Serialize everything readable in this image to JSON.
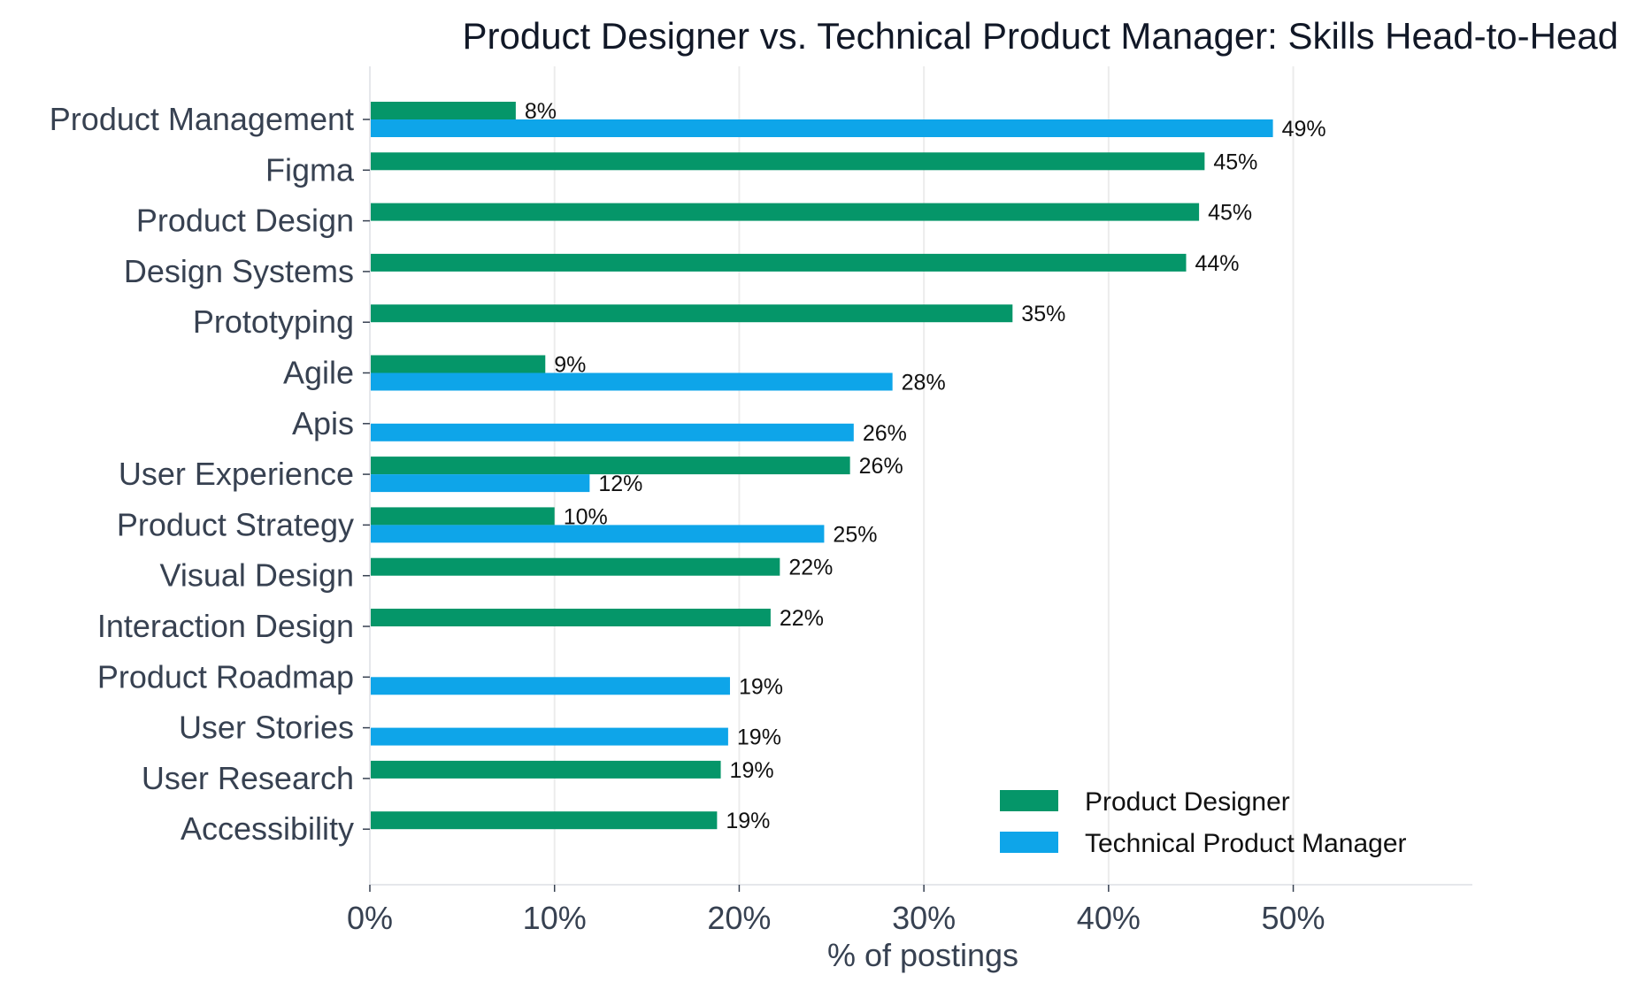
{
  "chart_data": {
    "type": "bar",
    "orientation": "horizontal",
    "title": "Product Designer vs. Technical Product Manager: Skills Head-to-Head",
    "xlabel": "% of postings",
    "ylabel": "",
    "xlim": [
      0,
      59.7
    ],
    "xticks": [
      0,
      10,
      20,
      30,
      40,
      50
    ],
    "xtick_labels": [
      "0%",
      "10%",
      "20%",
      "30%",
      "40%",
      "50%"
    ],
    "grid": "vertical",
    "legend_position": "lower-right",
    "categories": [
      "Product Management",
      "Figma",
      "Product Design",
      "Design Systems",
      "Prototyping",
      "Agile",
      "Apis",
      "User Experience",
      "Product Strategy",
      "Visual Design",
      "Interaction Design",
      "Product Roadmap",
      "User Stories",
      "User Research",
      "Accessibility"
    ],
    "series": [
      {
        "name": "Product Designer",
        "color": "#059669",
        "values": [
          7.9,
          45.2,
          44.9,
          44.2,
          34.8,
          9.5,
          null,
          26.0,
          10.0,
          22.2,
          21.7,
          null,
          null,
          19.0,
          18.8
        ],
        "labels": [
          "8%",
          "45%",
          "45%",
          "44%",
          "35%",
          "9%",
          "",
          "26%",
          "10%",
          "22%",
          "22%",
          "",
          "",
          "19%",
          "19%"
        ]
      },
      {
        "name": "Technical Product Manager",
        "color": "#0ea5e9",
        "values": [
          48.9,
          null,
          null,
          null,
          null,
          28.3,
          26.2,
          11.9,
          24.6,
          null,
          null,
          19.5,
          19.4,
          null,
          null
        ],
        "labels": [
          "49%",
          "",
          "",
          "",
          "",
          "28%",
          "26%",
          "12%",
          "25%",
          "",
          "",
          "19%",
          "19%",
          "",
          ""
        ]
      }
    ]
  }
}
